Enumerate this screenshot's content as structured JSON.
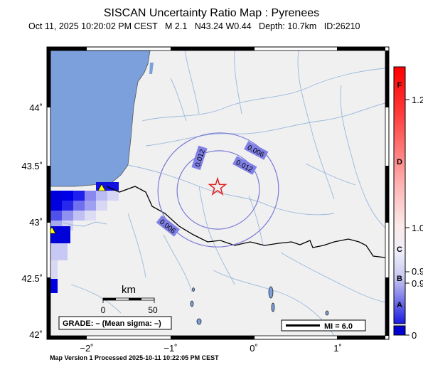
{
  "header": {
    "title": "SISCAN Uncertainty Ratio Map : Pyrenees",
    "date": "Oct 11, 2025 10:20:02 PM CEST",
    "magnitude": "M 2.1",
    "location": "N43.24 W0.44",
    "depth": "Depth: 10.7km",
    "event_id": "ID:26210"
  },
  "axes": {
    "y_ticks": [
      "44˚",
      "43.5˚",
      "43˚",
      "42.5˚",
      "42˚"
    ],
    "x_ticks": [
      "−2˚",
      "−1˚",
      "0˚",
      "1˚"
    ]
  },
  "scale_bar": {
    "unit": "km",
    "labels": [
      "0",
      "50"
    ]
  },
  "grade_box": "GRADE: – (Mean sigma: –)",
  "mi_legend": "MI = 6.0",
  "contours": [
    {
      "label": "0.006",
      "value": 0.006
    },
    {
      "label": "0.012",
      "value": 0.012
    },
    {
      "label": "0.012",
      "value": 0.012
    },
    {
      "label": "0.006",
      "value": 0.006
    }
  ],
  "colorbar": {
    "letters": [
      "F",
      "D",
      "C",
      "B",
      "A"
    ],
    "values": [
      "1.2",
      "1.0",
      "0.9",
      "0.9",
      "0"
    ]
  },
  "footer": "Map Version 1 Processed 2025-10-11 10:22:05 PM CEST",
  "colors": {
    "sea": "#7ca0dc",
    "land": "#f0f0f0",
    "river": "#9ab8dc",
    "contour": "#7a7ad8",
    "epicenter": "#e02020",
    "station": "#ffff00"
  }
}
